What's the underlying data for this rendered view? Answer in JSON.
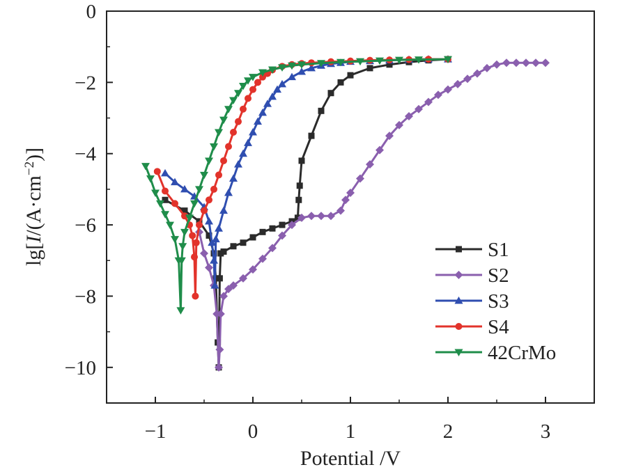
{
  "chart_data": {
    "type": "line",
    "title": "",
    "xlabel": "Potential /V",
    "ylabel": "lg[I/(A·cm⁻²)]",
    "ylabel_parts": {
      "prefix": "lg[",
      "italic": "I",
      "middle": "/(A·cm",
      "sup": "−2",
      "suffix": ")]"
    },
    "xlim": [
      -1.5,
      3.5
    ],
    "ylim": [
      -11,
      0
    ],
    "xticks": [
      -1,
      0,
      1,
      2,
      3
    ],
    "yticks": [
      0,
      -2,
      -4,
      -6,
      -8,
      -10
    ],
    "xtick_labels": [
      "−1",
      "0",
      "1",
      "2",
      "3"
    ],
    "ytick_labels": [
      "0",
      "−2",
      "−4",
      "−6",
      "−8",
      "−10"
    ],
    "grid": false,
    "legend_position": "bottom-right",
    "series": [
      {
        "name": "S1",
        "color": "#2b2b2b",
        "marker": "square",
        "x": [
          -0.9,
          -0.7,
          -0.55,
          -0.45,
          -0.4,
          -0.38,
          -0.36,
          -0.35,
          -0.34,
          -0.33,
          -0.3,
          -0.2,
          -0.1,
          0.0,
          0.1,
          0.2,
          0.3,
          0.4,
          0.46,
          0.47,
          0.48,
          0.5,
          0.6,
          0.7,
          0.8,
          0.9,
          1.0,
          1.2,
          1.4,
          1.6,
          1.8,
          2.0
        ],
        "y": [
          -5.3,
          -5.6,
          -5.9,
          -6.3,
          -6.8,
          -7.5,
          -9.3,
          -10.0,
          -7.5,
          -6.8,
          -6.75,
          -6.6,
          -6.5,
          -6.35,
          -6.2,
          -6.1,
          -6.0,
          -5.9,
          -5.8,
          -5.3,
          -4.9,
          -4.2,
          -3.5,
          -2.8,
          -2.3,
          -2.0,
          -1.8,
          -1.6,
          -1.5,
          -1.43,
          -1.38,
          -1.35
        ]
      },
      {
        "name": "S2",
        "color": "#8a5fae",
        "marker": "diamond",
        "x": [
          -0.55,
          -0.5,
          -0.45,
          -0.4,
          -0.37,
          -0.35,
          -0.34,
          -0.33,
          -0.3,
          -0.25,
          -0.2,
          -0.1,
          0.0,
          0.1,
          0.2,
          0.3,
          0.4,
          0.5,
          0.6,
          0.7,
          0.8,
          0.9,
          0.95,
          1.0,
          1.1,
          1.2,
          1.3,
          1.4,
          1.5,
          1.6,
          1.7,
          1.8,
          1.9,
          2.0,
          2.1,
          2.2,
          2.3,
          2.4,
          2.5,
          2.6,
          2.7,
          2.8,
          2.9,
          3.0
        ],
        "y": [
          -6.2,
          -6.8,
          -7.2,
          -7.7,
          -8.5,
          -10.0,
          -9.5,
          -8.5,
          -8.0,
          -7.8,
          -7.7,
          -7.5,
          -7.25,
          -6.95,
          -6.65,
          -6.3,
          -6.0,
          -5.8,
          -5.75,
          -5.75,
          -5.75,
          -5.6,
          -5.3,
          -5.1,
          -4.7,
          -4.3,
          -3.9,
          -3.5,
          -3.2,
          -2.95,
          -2.75,
          -2.55,
          -2.35,
          -2.2,
          -2.05,
          -1.9,
          -1.75,
          -1.6,
          -1.5,
          -1.45,
          -1.45,
          -1.45,
          -1.45,
          -1.45
        ]
      },
      {
        "name": "S3",
        "color": "#2f4eb0",
        "marker": "triangle-up",
        "x": [
          -0.9,
          -0.8,
          -0.7,
          -0.6,
          -0.5,
          -0.45,
          -0.42,
          -0.4,
          -0.39,
          -0.38,
          -0.35,
          -0.3,
          -0.25,
          -0.2,
          -0.15,
          -0.1,
          -0.05,
          0.0,
          0.05,
          0.1,
          0.15,
          0.2,
          0.25,
          0.3,
          0.4,
          0.5,
          0.6,
          0.7,
          0.8,
          0.9,
          1.0,
          1.2,
          1.4,
          1.6,
          1.8,
          2.0
        ],
        "y": [
          -4.55,
          -4.8,
          -5.0,
          -5.2,
          -5.5,
          -5.9,
          -6.5,
          -7.0,
          -7.7,
          -6.4,
          -6.1,
          -5.6,
          -5.1,
          -4.7,
          -4.3,
          -4.0,
          -3.7,
          -3.4,
          -3.1,
          -2.85,
          -2.6,
          -2.4,
          -2.2,
          -2.05,
          -1.85,
          -1.7,
          -1.6,
          -1.53,
          -1.48,
          -1.45,
          -1.42,
          -1.4,
          -1.38,
          -1.36,
          -1.35,
          -1.35
        ]
      },
      {
        "name": "S4",
        "color": "#e2332b",
        "marker": "circle",
        "x": [
          -0.98,
          -0.9,
          -0.8,
          -0.7,
          -0.65,
          -0.62,
          -0.6,
          -0.59,
          -0.58,
          -0.55,
          -0.5,
          -0.45,
          -0.4,
          -0.35,
          -0.3,
          -0.25,
          -0.2,
          -0.15,
          -0.1,
          -0.05,
          0.0,
          0.05,
          0.1,
          0.15,
          0.2,
          0.3,
          0.4,
          0.5,
          0.6,
          0.8,
          1.0,
          1.2,
          1.4,
          1.6,
          1.8,
          2.0
        ],
        "y": [
          -4.5,
          -5.05,
          -5.4,
          -5.75,
          -6.0,
          -6.3,
          -6.9,
          -8.0,
          -6.5,
          -6.0,
          -5.6,
          -5.3,
          -5.0,
          -4.6,
          -4.2,
          -3.8,
          -3.4,
          -3.1,
          -2.75,
          -2.45,
          -2.2,
          -2.0,
          -1.85,
          -1.75,
          -1.65,
          -1.55,
          -1.5,
          -1.47,
          -1.45,
          -1.42,
          -1.4,
          -1.38,
          -1.37,
          -1.36,
          -1.35,
          -1.35
        ]
      },
      {
        "name": "42CrMo",
        "color": "#1f8d4a",
        "marker": "triangle-down",
        "x": [
          -1.1,
          -1.05,
          -1.0,
          -0.95,
          -0.9,
          -0.85,
          -0.8,
          -0.76,
          -0.74,
          -0.73,
          -0.72,
          -0.7,
          -0.65,
          -0.6,
          -0.55,
          -0.5,
          -0.45,
          -0.4,
          -0.35,
          -0.3,
          -0.25,
          -0.2,
          -0.15,
          -0.1,
          -0.05,
          0.0,
          0.1,
          0.2,
          0.3,
          0.4,
          0.5,
          0.7,
          0.9,
          1.1,
          1.3,
          1.5,
          1.7,
          2.0
        ],
        "y": [
          -4.35,
          -4.7,
          -5.1,
          -5.4,
          -5.7,
          -6.0,
          -6.4,
          -7.0,
          -8.4,
          -7.0,
          -6.6,
          -6.2,
          -5.8,
          -5.4,
          -5.0,
          -4.6,
          -4.2,
          -3.8,
          -3.4,
          -3.05,
          -2.75,
          -2.5,
          -2.3,
          -2.1,
          -1.95,
          -1.85,
          -1.72,
          -1.64,
          -1.58,
          -1.53,
          -1.5,
          -1.46,
          -1.43,
          -1.41,
          -1.39,
          -1.37,
          -1.36,
          -1.35
        ]
      }
    ]
  }
}
